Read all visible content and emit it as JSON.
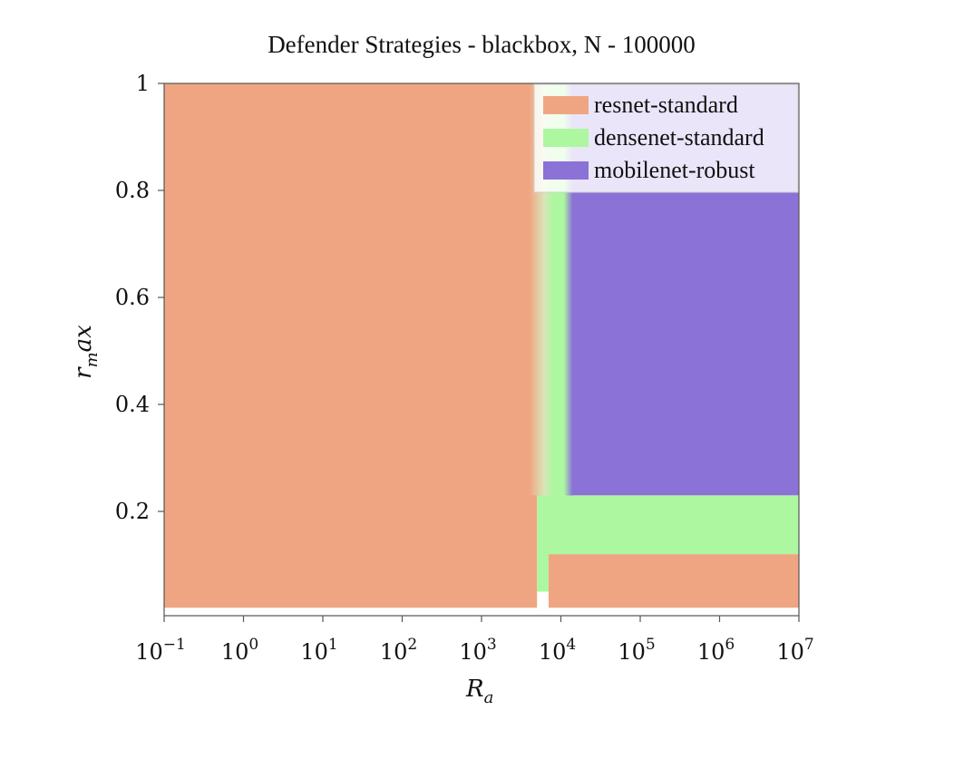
{
  "chart_data": {
    "type": "heatmap",
    "title": "Defender Strategies - blackbox, N - 100000",
    "xlabel": "R_a",
    "ylabel": "r_max",
    "x_scale": "log",
    "xlim": [
      0.1,
      10000000
    ],
    "ylim": [
      0.02,
      1
    ],
    "grid": false,
    "legend_position": "top-right",
    "x_ticks": [
      {
        "value": 0.1,
        "base": "10",
        "exp": "−1"
      },
      {
        "value": 1,
        "base": "10",
        "exp": "0"
      },
      {
        "value": 10,
        "base": "10",
        "exp": "1"
      },
      {
        "value": 100,
        "base": "10",
        "exp": "2"
      },
      {
        "value": 1000,
        "base": "10",
        "exp": "3"
      },
      {
        "value": 10000,
        "base": "10",
        "exp": "4"
      },
      {
        "value": 100000,
        "base": "10",
        "exp": "5"
      },
      {
        "value": 1000000,
        "base": "10",
        "exp": "6"
      },
      {
        "value": 10000000,
        "base": "10",
        "exp": "7"
      }
    ],
    "y_ticks": [
      {
        "value": 0.2,
        "label": "0.2"
      },
      {
        "value": 0.4,
        "label": "0.4"
      },
      {
        "value": 0.6,
        "label": "0.6"
      },
      {
        "value": 0.8,
        "label": "0.8"
      },
      {
        "value": 1,
        "label": "1"
      }
    ],
    "series": [
      {
        "name": "resnet-standard",
        "color": "#f0a582"
      },
      {
        "name": "densenet-standard",
        "color": "#acf7a0"
      },
      {
        "name": "mobilenet-robust",
        "color": "#8b72d6"
      }
    ],
    "regions": [
      {
        "series": "resnet-standard",
        "x": [
          0.1,
          5000
        ],
        "y": [
          0.02,
          1
        ]
      },
      {
        "series": "densenet-standard",
        "x": [
          5000,
          7000
        ],
        "y": [
          0.05,
          1
        ]
      },
      {
        "series": "densenet-standard",
        "x": [
          7000,
          10000000
        ],
        "y": [
          0.12,
          0.23
        ]
      },
      {
        "series": "resnet-standard",
        "x": [
          7000,
          10000000
        ],
        "y": [
          0.02,
          0.12
        ]
      },
      {
        "series": "mobilenet-robust",
        "x": [
          12000,
          10000000
        ],
        "y": [
          0.23,
          1
        ]
      },
      {
        "series": "densenet-standard",
        "x": [
          7000,
          12000
        ],
        "y": [
          0.23,
          1
        ]
      }
    ]
  }
}
